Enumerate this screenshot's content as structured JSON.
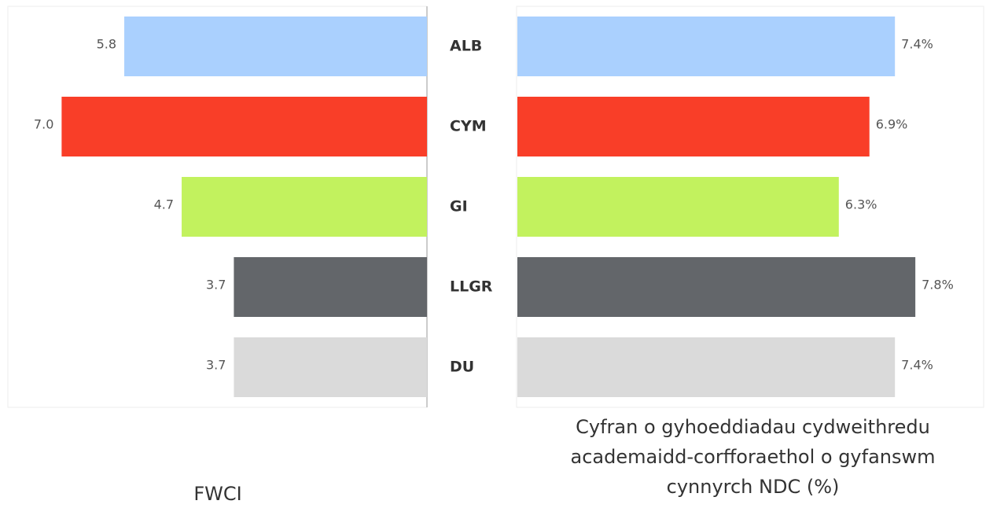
{
  "chart_data": [
    {
      "type": "bar",
      "orientation": "horizontal",
      "direction": "left",
      "xlabel": "FWCI",
      "categories": [
        "ALB",
        "CYM",
        "GI",
        "LLGR",
        "DU"
      ],
      "values": [
        5.8,
        7.0,
        4.7,
        3.7,
        3.7
      ],
      "value_labels": [
        "5.8",
        "7.0",
        "4.7",
        "3.7",
        "3.7"
      ],
      "colors": [
        "#aad0fe",
        "#f93e28",
        "#c2f25e",
        "#63666a",
        "#dadada"
      ],
      "xlim": [
        0,
        8
      ]
    },
    {
      "type": "bar",
      "orientation": "horizontal",
      "direction": "right",
      "xlabel": "Cyfran o gyhoeddiadau cydweithredu academaidd-corfforaethol o gyfanswm cynnyrch NDC (%)",
      "values": [
        7.4,
        6.9,
        6.3,
        7.8,
        7.4
      ],
      "value_labels": [
        "7.4%",
        "6.9%",
        "6.3%",
        "7.8%",
        "7.4%"
      ],
      "colors": [
        "#aad0fe",
        "#f93e28",
        "#c2f25e",
        "#63666a",
        "#dadada"
      ],
      "xlim": [
        0,
        9
      ]
    }
  ]
}
